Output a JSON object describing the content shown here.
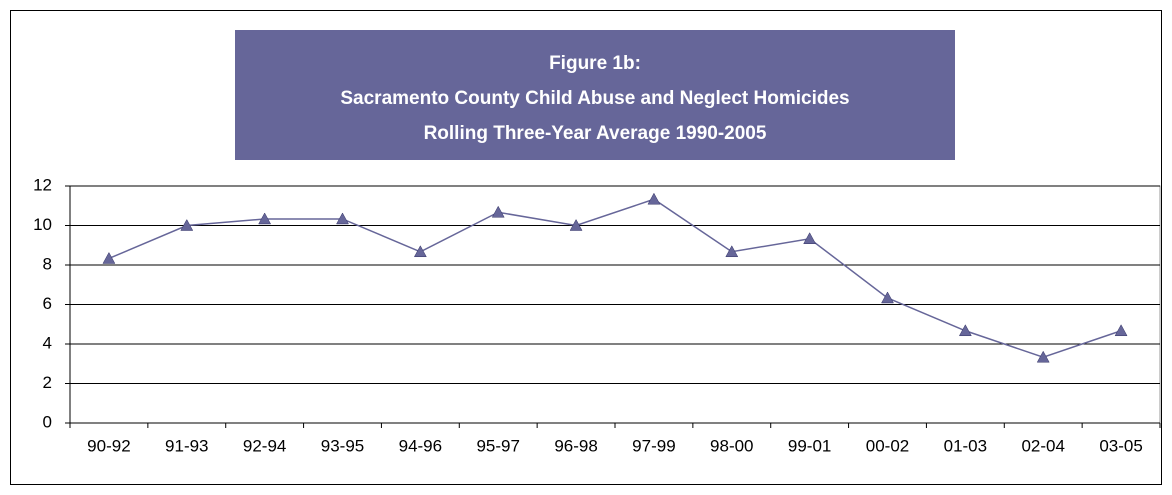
{
  "chart_data": {
    "type": "line",
    "title": [
      "Figure 1b:",
      "Sacramento County Child Abuse and Neglect Homicides",
      "Rolling Three-Year Average 1990-2005"
    ],
    "categories": [
      "90-92",
      "91-93",
      "92-94",
      "93-95",
      "94-96",
      "95-97",
      "96-98",
      "97-99",
      "98-00",
      "99-01",
      "00-02",
      "01-03",
      "02-04",
      "03-05"
    ],
    "values": [
      8.33,
      10,
      10.33,
      10.33,
      8.67,
      10.67,
      10,
      11.33,
      8.67,
      9.33,
      6.33,
      4.67,
      3.33,
      4.67
    ],
    "color": "#666699",
    "ylim": [
      0,
      12
    ],
    "yticks": [
      0,
      2,
      4,
      6,
      8,
      10,
      12
    ],
    "grid": true
  }
}
